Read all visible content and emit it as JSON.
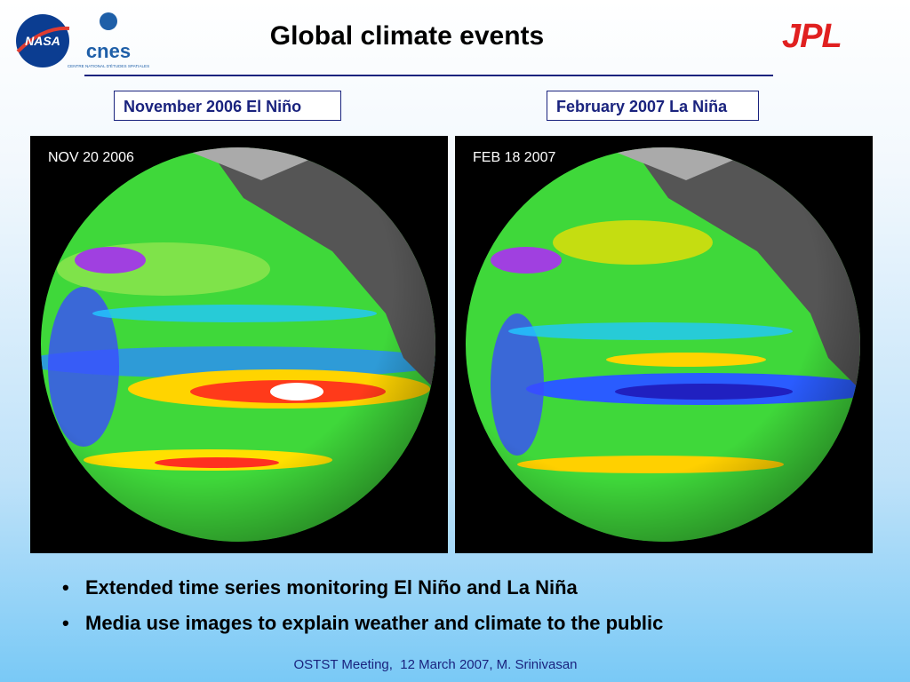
{
  "header": {
    "title": "Global climate events",
    "logos": {
      "nasa": "NASA",
      "cnes": "cnes",
      "cnes_subtitle": "CENTRE NATIONAL D'ÉTUDES SPATIALES",
      "jpl": "JPL"
    }
  },
  "panels": [
    {
      "label": "November 2006 El Niño",
      "image_date": "NOV 20 2006"
    },
    {
      "label": "February 2007 La Niña",
      "image_date": "FEB 18 2007"
    }
  ],
  "bullets": [
    "Extended time series monitoring El Niño and La Niña",
    "Media use images to explain weather and climate to the public"
  ],
  "footer": "OSTST Meeting,  12 March 2007, M. Srinivasan"
}
